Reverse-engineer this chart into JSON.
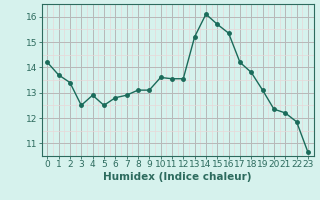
{
  "x": [
    0,
    1,
    2,
    3,
    4,
    5,
    6,
    7,
    8,
    9,
    10,
    11,
    12,
    13,
    14,
    15,
    16,
    17,
    18,
    19,
    20,
    21,
    22,
    23
  ],
  "y": [
    14.2,
    13.7,
    13.4,
    12.5,
    12.9,
    12.5,
    12.8,
    12.9,
    13.1,
    13.1,
    13.6,
    13.55,
    13.55,
    15.2,
    16.1,
    15.7,
    15.35,
    14.2,
    13.8,
    13.1,
    12.35,
    12.2,
    11.85,
    10.65
  ],
  "line_color": "#1a6b5a",
  "marker": "o",
  "markersize": 2.5,
  "linewidth": 1.0,
  "xlabel": "Humidex (Indice chaleur)",
  "xlabel_fontsize": 7.5,
  "xlim": [
    -0.5,
    23.5
  ],
  "ylim": [
    10.5,
    16.5
  ],
  "yticks": [
    11,
    12,
    13,
    14,
    15,
    16
  ],
  "xticks": [
    0,
    1,
    2,
    3,
    4,
    5,
    6,
    7,
    8,
    9,
    10,
    11,
    12,
    13,
    14,
    15,
    16,
    17,
    18,
    19,
    20,
    21,
    22,
    23
  ],
  "bg_color": "#d6f2ed",
  "grid_color_major": "#b8b8b8",
  "grid_color_minor": "#e8d8d8",
  "tick_fontsize": 6.5,
  "axis_color": "#2d6b5e",
  "label_color": "#2d6b5e"
}
